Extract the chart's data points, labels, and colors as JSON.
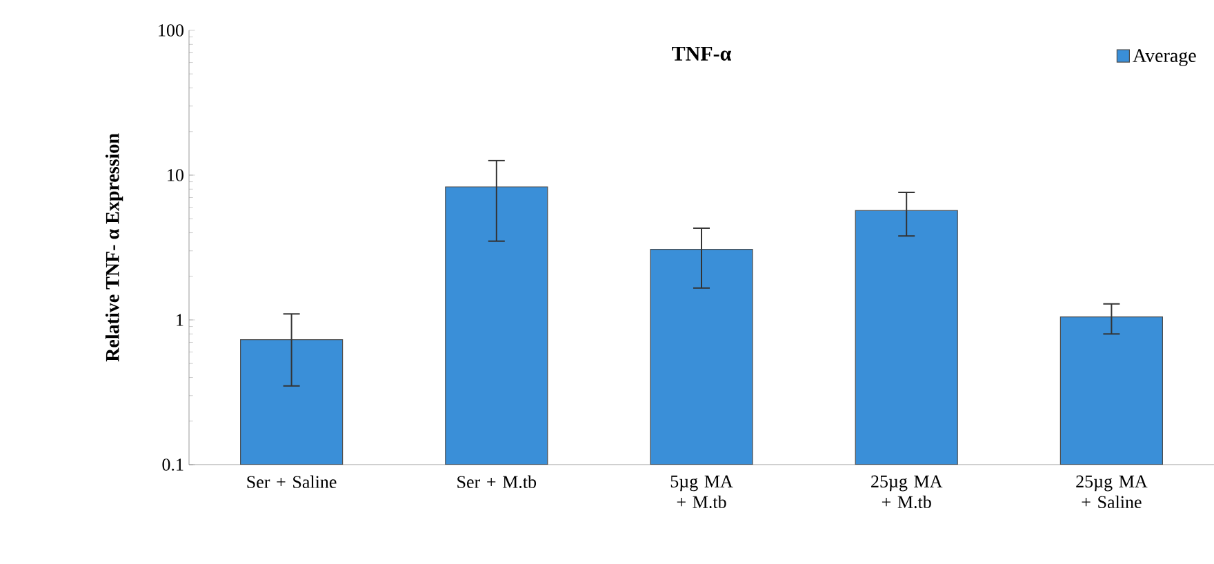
{
  "chart_data": {
    "type": "bar",
    "title": "TNF-α",
    "ylabel": "Relative TNF- α Expression",
    "categories": [
      "Ser + Saline",
      "Ser + M.tb",
      "5µg MA + M.tb",
      "25µg MA + M.tb",
      "25µg MA + Saline"
    ],
    "series": [
      {
        "name": "Average",
        "color": "#3a8fd8",
        "values": [
          0.73,
          8.3,
          3.07,
          5.7,
          1.05
        ],
        "errors": [
          [
            0.35,
            1.1
          ],
          [
            3.5,
            12.6
          ],
          [
            1.66,
            4.3
          ],
          [
            3.8,
            7.6
          ],
          [
            0.8,
            1.29
          ]
        ]
      }
    ],
    "log": true,
    "ylim": [
      0.1,
      100
    ],
    "yticks": [
      0.1,
      1,
      10,
      100
    ],
    "legend": "top right",
    "grid": false
  }
}
